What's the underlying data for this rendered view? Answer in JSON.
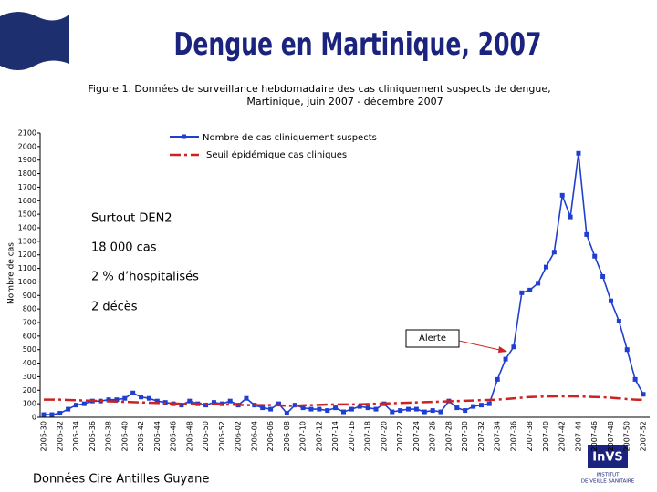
{
  "chart_data": {
    "type": "line",
    "title": "Dengue en Martinique, 2007",
    "subtitle": "Figure 1. Données de surveillance hebdomadaire des cas cliniquement suspects de dengue,",
    "subtitle2": "Martinique, juin 2007 - décembre 2007",
    "y_label": "Nombre de cas",
    "categories": [
      "2005-30",
      null,
      "2005-32",
      null,
      "2005-34",
      null,
      "2005-36",
      null,
      "2005-38",
      null,
      "2005-40",
      null,
      "2005-42",
      null,
      "2005-44",
      null,
      "2005-46",
      null,
      "2005-48",
      null,
      "2005-50",
      null,
      "2005-52",
      null,
      "2006-02",
      null,
      "2006-04",
      null,
      "2006-06",
      null,
      "2006-08",
      null,
      "2007-10",
      null,
      "2007-12",
      null,
      "2007-14",
      null,
      "2007-16",
      null,
      "2007-18",
      null,
      "2007-20",
      null,
      "2007-22",
      null,
      "2007-24",
      null,
      "2007-26",
      null,
      "2007-28",
      null,
      "2007-30",
      null,
      "2007-32",
      null,
      "2007-34",
      null,
      "2007-36",
      null,
      "2007-38",
      null,
      "2007-40",
      null,
      "2007-42",
      null,
      "2007-44",
      null,
      "2007-46",
      null,
      "2007-48",
      null,
      "2007-50",
      null,
      "2007-52"
    ],
    "series": [
      {
        "name": "Nombre de cas cliniquement suspects",
        "color": "#1f3fd0",
        "style": "solid-markers",
        "values": [
          20,
          20,
          30,
          60,
          90,
          100,
          120,
          120,
          130,
          130,
          140,
          180,
          150,
          140,
          120,
          110,
          100,
          90,
          120,
          100,
          90,
          110,
          100,
          120,
          90,
          140,
          90,
          70,
          60,
          100,
          30,
          90,
          70,
          60,
          60,
          50,
          70,
          40,
          60,
          80,
          70,
          60,
          100,
          40,
          50,
          60,
          60,
          40,
          50,
          40,
          120,
          70,
          50,
          80,
          90,
          100,
          280,
          430,
          520,
          920,
          940,
          990,
          1110,
          1220,
          1640,
          1480,
          1950,
          1350,
          1190,
          1040,
          860,
          710,
          500,
          280,
          170
        ]
      },
      {
        "name": "Seuil épidémique cas cliniques",
        "color": "#cc2222",
        "style": "dashdot",
        "values": [
          130,
          130,
          130,
          128,
          126,
          124,
          122,
          120,
          118,
          116,
          114,
          112,
          110,
          108,
          106,
          104,
          102,
          100,
          100,
          100,
          100,
          98,
          96,
          94,
          92,
          90,
          90,
          90,
          90,
          88,
          85,
          85,
          88,
          90,
          92,
          94,
          95,
          95,
          95,
          96,
          98,
          100,
          102,
          104,
          106,
          108,
          110,
          112,
          114,
          116,
          118,
          120,
          122,
          124,
          126,
          128,
          130,
          135,
          140,
          145,
          150,
          152,
          154,
          155,
          155,
          155,
          154,
          152,
          150,
          148,
          145,
          140,
          135,
          130,
          128
        ]
      }
    ],
    "ylim": [
      0,
      2100
    ],
    "yticks": [
      0,
      100,
      200,
      300,
      400,
      500,
      600,
      700,
      800,
      900,
      1000,
      1100,
      1200,
      1300,
      1400,
      1500,
      1600,
      1700,
      1800,
      1900,
      2000,
      2100
    ],
    "notes": [
      "Surtout DEN2",
      "18 000 cas",
      "2 % d’hospitalisés",
      "2 décès"
    ],
    "alert": "Alerte",
    "source": "Données Cire Antilles Guyane",
    "logo": "InVS",
    "logo_sub1": "INSTITUT",
    "logo_sub2": "DE VEILLE SANITAIRE"
  }
}
